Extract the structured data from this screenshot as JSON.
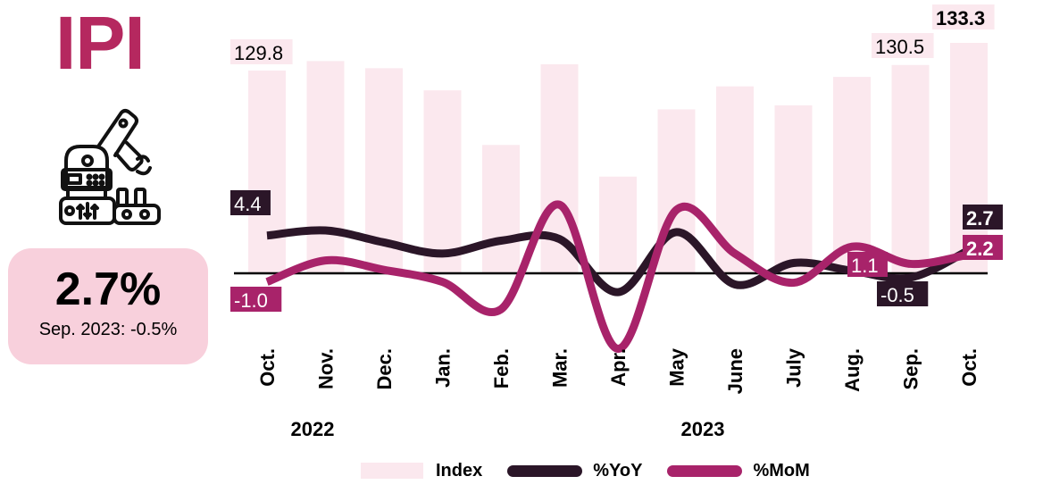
{
  "header": {
    "title": "IPI"
  },
  "icon": {
    "name": "industrial-robot-arm-icon"
  },
  "kpi": {
    "value": "2.7%",
    "subtitle": "Sep. 2023: -0.5%"
  },
  "colors": {
    "title": "#b5285f",
    "index_bar": "#fbe8ee",
    "yoy_line": "#2b1628",
    "mom_line": "#a8236a",
    "kpi_bg": "#f8d0dc",
    "zero_line": "#000000"
  },
  "legend": {
    "index": "Index",
    "yoy": "%YoY",
    "mom": "%MoM"
  },
  "chart_data": {
    "type": "bar",
    "title": "IPI",
    "categories": [
      "Oct.",
      "Nov.",
      "Dec.",
      "Jan.",
      "Feb.",
      "Mar.",
      "Apr.",
      "May",
      "June",
      "July",
      "Aug.",
      "Sep.",
      "Oct."
    ],
    "year_groups": [
      {
        "label": "2022",
        "start": 0,
        "end": 2
      },
      {
        "label": "2023",
        "start": 3,
        "end": 12
      }
    ],
    "series": [
      {
        "name": "Index",
        "type": "bar",
        "values": [
          129.8,
          131.0,
          130.1,
          127.3,
          120.4,
          130.6,
          116.4,
          124.9,
          127.8,
          125.4,
          129.0,
          130.5,
          133.3
        ]
      },
      {
        "name": "%YoY",
        "type": "line",
        "values": [
          4.4,
          5.0,
          3.6,
          2.3,
          3.8,
          4.0,
          -2.2,
          4.8,
          -1.3,
          1.2,
          0.3,
          -0.5,
          2.7
        ]
      },
      {
        "name": "%MoM",
        "type": "line",
        "values": [
          -1.0,
          1.5,
          0.4,
          -1.0,
          -4.2,
          8.0,
          -8.8,
          7.4,
          2.3,
          -1.1,
          3.1,
          1.1,
          2.2
        ]
      }
    ],
    "data_labels": [
      {
        "series": "Index",
        "index": 0,
        "text": "129.8"
      },
      {
        "series": "Index",
        "index": 11,
        "text": "130.5"
      },
      {
        "series": "Index",
        "index": 12,
        "text": "133.3",
        "bold": true
      },
      {
        "series": "%YoY",
        "index": 0,
        "text": "4.4"
      },
      {
        "series": "%YoY",
        "index": 11,
        "text": "-0.5"
      },
      {
        "series": "%YoY",
        "index": 12,
        "text": "2.7"
      },
      {
        "series": "%MoM",
        "index": 0,
        "text": "-1.0"
      },
      {
        "series": "%MoM",
        "index": 11,
        "text": "1.1"
      },
      {
        "series": "%MoM",
        "index": 12,
        "text": "2.2"
      }
    ],
    "xlabel": "",
    "ylabel": "",
    "grid": false,
    "legend_position": "bottom",
    "zero_line": true
  }
}
